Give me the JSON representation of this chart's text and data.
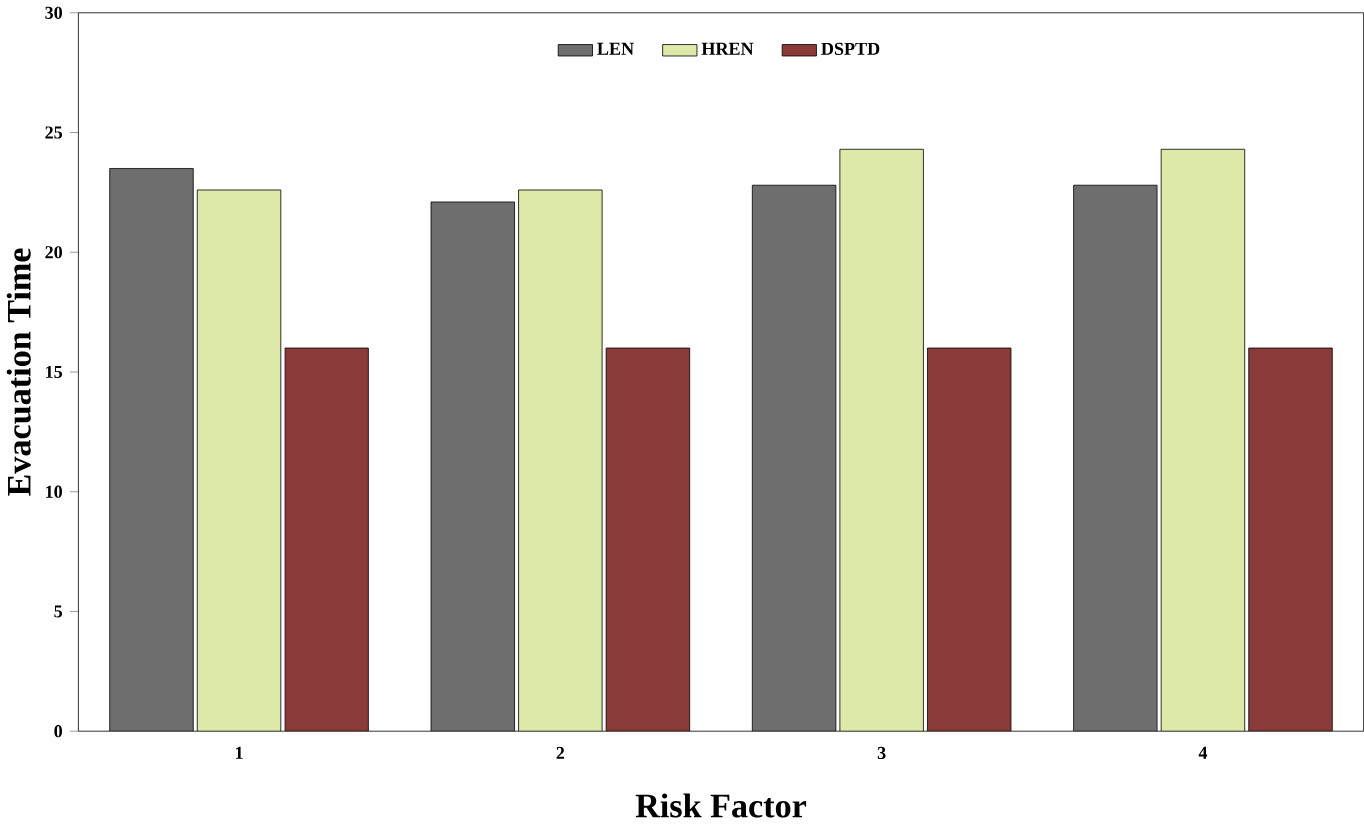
{
  "chart_data": {
    "type": "bar",
    "xlabel": "Risk Factor",
    "ylabel": "Evacuation Time",
    "categories": [
      "1",
      "2",
      "3",
      "4"
    ],
    "series": [
      {
        "name": "LEN",
        "color": "#6e6e6e",
        "values": [
          23.5,
          22.1,
          22.8,
          22.8
        ]
      },
      {
        "name": "HREN",
        "color": "#dde9a8",
        "values": [
          22.6,
          22.6,
          24.3,
          24.3
        ]
      },
      {
        "name": "DSPTD",
        "color": "#8b3a3a",
        "values": [
          16.0,
          16.0,
          16.0,
          16.0
        ]
      }
    ],
    "ylim": [
      0,
      30
    ],
    "yticks": [
      0,
      5,
      10,
      15,
      20,
      25,
      30
    ],
    "legend": "top",
    "grid": false
  }
}
